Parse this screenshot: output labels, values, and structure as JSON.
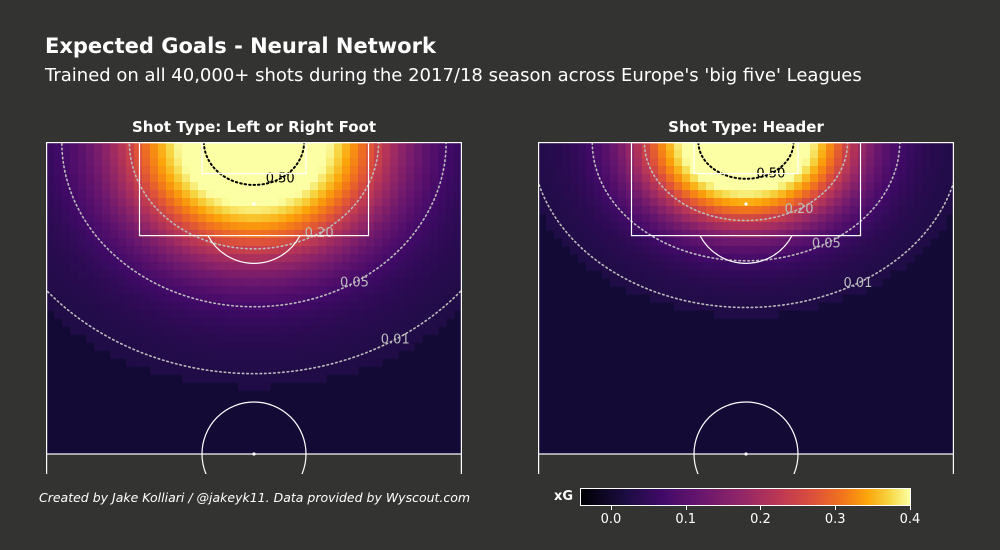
{
  "header": {
    "title": "Expected Goals - Neural Network",
    "subtitle": "Trained on all 40,000+ shots during the 2017/18 season across Europe's 'big five' Leagues"
  },
  "footer": {
    "credit": "Created by Jake Kolliari / @jakeyk11. Data provided by Wyscout.com"
  },
  "colors": {
    "background": "#333432",
    "pitch_background": "#140a36",
    "lines": "#ffffff",
    "contour": "#bbbbbb",
    "colormap": "inferno"
  },
  "chart_data": [
    {
      "type": "heatmap",
      "title": "Shot Type: Left or Right Foot",
      "colorbar_label": "xG",
      "colorbar_ticks": [
        "0.0",
        "0.1",
        "0.2",
        "0.3",
        "0.4"
      ],
      "colorbar_range": [
        -0.04,
        0.4
      ],
      "contours": [
        {
          "level": 0.5,
          "label": "0.50"
        },
        {
          "level": 0.2,
          "label": "0.20"
        },
        {
          "level": 0.05,
          "label": "0.05"
        },
        {
          "level": 0.01,
          "label": "0.01"
        }
      ],
      "peak_xg": 0.55,
      "spread_x": 0.28,
      "spread_y": 0.24
    },
    {
      "type": "heatmap",
      "title": "Shot Type: Header",
      "colorbar_label": "xG",
      "contours": [
        {
          "level": 0.5,
          "label": "0.50"
        },
        {
          "level": 0.2,
          "label": "0.20"
        },
        {
          "level": 0.05,
          "label": "0.05"
        },
        {
          "level": 0.01,
          "label": "0.01"
        }
      ],
      "peak_xg": 0.6,
      "spread_x": 0.22,
      "spread_y": 0.17
    }
  ],
  "colorbar": {
    "label": "xG",
    "ticks": [
      "0.0",
      "0.1",
      "0.2",
      "0.3",
      "0.4"
    ]
  }
}
